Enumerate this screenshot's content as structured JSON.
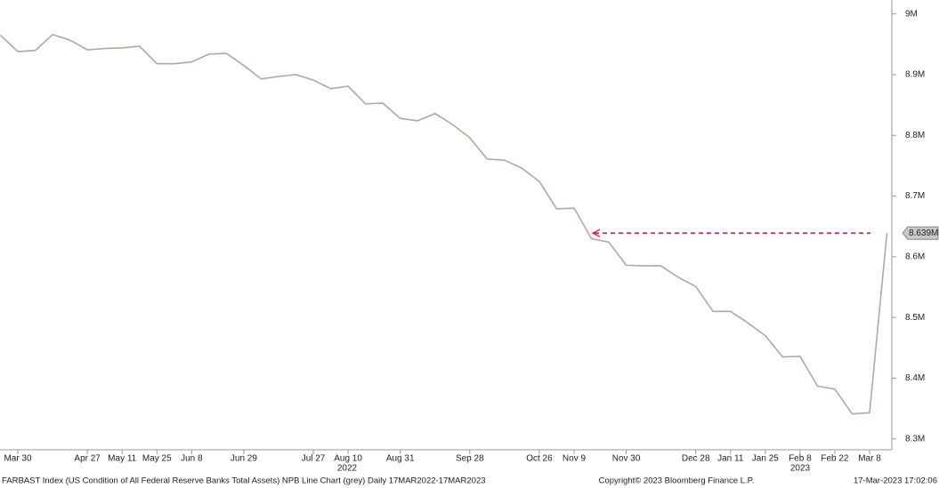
{
  "chart_data": {
    "type": "line",
    "categories": [
      null,
      "Mar 30",
      null,
      null,
      null,
      "Apr 27",
      null,
      "May 11",
      null,
      "May 25",
      null,
      "Jun 8",
      null,
      null,
      "Jun 29",
      null,
      null,
      null,
      "Jul 27",
      null,
      "Aug 10",
      null,
      null,
      "Aug 31",
      null,
      null,
      null,
      "Sep 28",
      null,
      null,
      null,
      "Oct 26",
      null,
      "Nov 9",
      null,
      null,
      "Nov 30",
      null,
      null,
      null,
      "Dec 28",
      null,
      "Jan 11",
      null,
      "Jan 25",
      null,
      "Feb 8",
      null,
      "Feb 22",
      null,
      "Mar 8",
      null
    ],
    "year_labels": [
      "2022",
      "2023"
    ],
    "series": [
      {
        "name": "FARBAST Index",
        "color": "#b3a89c",
        "values": [
          8.965,
          8.938,
          8.94,
          8.966,
          8.957,
          8.941,
          8.943,
          8.944,
          8.947,
          8.918,
          8.918,
          8.921,
          8.934,
          8.935,
          8.915,
          8.893,
          8.897,
          8.9,
          8.891,
          8.877,
          8.881,
          8.852,
          8.853,
          8.828,
          8.824,
          8.836,
          8.818,
          8.796,
          8.761,
          8.759,
          8.746,
          8.724,
          8.679,
          8.68,
          8.63,
          8.624,
          8.586,
          8.585,
          8.585,
          8.566,
          8.551,
          8.51,
          8.51,
          8.491,
          8.47,
          8.435,
          8.436,
          8.387,
          8.382,
          8.341,
          8.343,
          8.639
        ]
      }
    ],
    "last_label": {
      "value": 8.639,
      "label": "8.639M"
    },
    "ylim": [
      8.282,
      9.023
    ],
    "yticks": [
      {
        "value": 9,
        "label": "9M"
      },
      {
        "value": 8.9,
        "label": "8.9M"
      },
      {
        "value": 8.8,
        "label": "8.8M"
      },
      {
        "value": 8.7,
        "label": "8.7M"
      },
      {
        "value": 8.6,
        "label": "8.6M"
      },
      {
        "value": 8.5,
        "label": "8.5M"
      },
      {
        "value": 8.4,
        "label": "8.4M"
      },
      {
        "value": 8.3,
        "label": "8.3M"
      }
    ],
    "footer": {
      "left": "FARBAST Index (US Condition of All Federal Reserve Banks Total Assets) NPB Line Chart (grey)  Daily 17MAR2022-17MAR2023",
      "center": "Copyright© 2023 Bloomberg Finance L.P.",
      "right": "17-Mar-2023 17:02:06"
    }
  }
}
